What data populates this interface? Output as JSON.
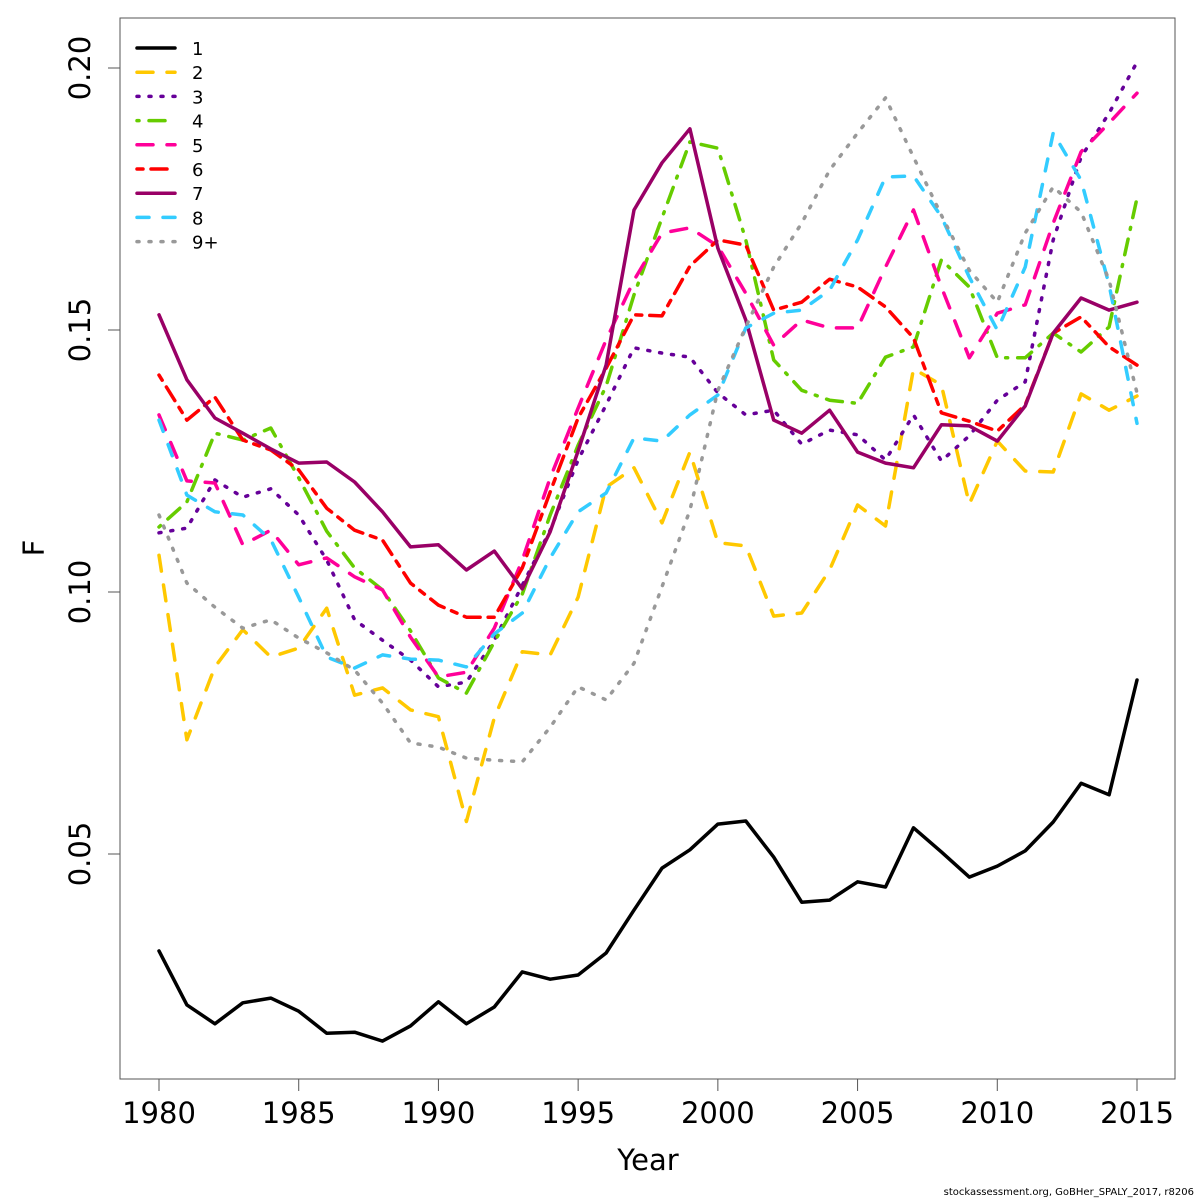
{
  "chart_data": {
    "type": "line",
    "title": "",
    "xlabel": "Year",
    "ylabel": "F",
    "xlim": [
      1978.6,
      2016.3
    ],
    "ylim": [
      0.012,
      0.2095
    ],
    "x_ticks": [
      1980,
      1985,
      1990,
      1995,
      2000,
      2005,
      2010,
      2015
    ],
    "x_tick_labels": [
      "1980",
      "1985",
      "1990",
      "1995",
      "2000",
      "2005",
      "2010",
      "2015"
    ],
    "y_ticks": [
      0.05,
      0.1,
      0.15,
      0.2
    ],
    "y_tick_labels": [
      "0.05",
      "0.10",
      "0.15",
      "0.20"
    ],
    "grid": false,
    "legend_position": "top-left",
    "x": [
      1980,
      1981,
      1982,
      1983,
      1984,
      1985,
      1986,
      1987,
      1988,
      1989,
      1990,
      1991,
      1992,
      1993,
      1994,
      1995,
      1996,
      1997,
      1998,
      1999,
      2000,
      2001,
      2002,
      2003,
      2004,
      2005,
      2006,
      2007,
      2008,
      2009,
      2010,
      2011,
      2012,
      2013,
      2014,
      2015
    ],
    "series": [
      {
        "name": "1",
        "color": "#000000",
        "dash": "solid",
        "values": [
          0.0315,
          0.0212,
          0.0176,
          0.0216,
          0.0225,
          0.02,
          0.0158,
          0.016,
          0.0143,
          0.0172,
          0.0218,
          0.0176,
          0.0208,
          0.0275,
          0.0261,
          0.0269,
          0.0311,
          0.0393,
          0.0473,
          0.0508,
          0.0557,
          0.0563,
          0.0494,
          0.0408,
          0.0412,
          0.0447,
          0.0437,
          0.055,
          0.0504,
          0.0456,
          0.0477,
          0.0506,
          0.0561,
          0.0635,
          0.0613,
          0.0832
        ]
      },
      {
        "name": "2",
        "color": "#FFC800",
        "dash": "longdash",
        "values": [
          0.107,
          0.0718,
          0.0857,
          0.0928,
          0.0876,
          0.0893,
          0.0969,
          0.0803,
          0.0817,
          0.0775,
          0.0762,
          0.0562,
          0.076,
          0.0886,
          0.088,
          0.099,
          0.12,
          0.1237,
          0.1132,
          0.1267,
          0.1094,
          0.1088,
          0.0954,
          0.096,
          0.1042,
          0.1166,
          0.1126,
          0.1426,
          0.1395,
          0.1168,
          0.1288,
          0.1231,
          0.1229,
          0.1378,
          0.1347,
          0.1374
        ]
      },
      {
        "name": "3",
        "color": "#660099",
        "dash": "dotted",
        "values": [
          0.1113,
          0.1122,
          0.1214,
          0.1181,
          0.1197,
          0.1147,
          0.1061,
          0.0947,
          0.0908,
          0.087,
          0.0819,
          0.0828,
          0.0908,
          0.1013,
          0.1118,
          0.1252,
          0.1357,
          0.1466,
          0.1456,
          0.1448,
          0.138,
          0.1338,
          0.1347,
          0.1282,
          0.1309,
          0.13,
          0.1252,
          0.1338,
          0.125,
          0.1298,
          0.1366,
          0.1401,
          0.1672,
          0.183,
          0.1914,
          0.2011
        ]
      },
      {
        "name": "4",
        "color": "#66CC00",
        "dash": "dotdash",
        "values": [
          0.1124,
          0.1172,
          0.1303,
          0.129,
          0.1313,
          0.1218,
          0.1116,
          0.1046,
          0.1004,
          0.0926,
          0.0836,
          0.0807,
          0.0905,
          0.0996,
          0.1147,
          0.128,
          0.1393,
          0.1567,
          0.1714,
          0.1859,
          0.1847,
          0.1672,
          0.1443,
          0.1385,
          0.1366,
          0.136,
          0.1448,
          0.1468,
          0.1634,
          0.1582,
          0.1447,
          0.1447,
          0.1494,
          0.1458,
          0.1506,
          0.1752
        ]
      },
      {
        "name": "5",
        "color": "#FF0099",
        "dash": "longdash",
        "values": [
          0.1338,
          0.1212,
          0.1208,
          0.109,
          0.1118,
          0.1052,
          0.1065,
          0.1029,
          0.1004,
          0.0914,
          0.0838,
          0.0847,
          0.0931,
          0.1061,
          0.1218,
          0.1351,
          0.1481,
          0.1595,
          0.1685,
          0.1695,
          0.166,
          0.157,
          0.1471,
          0.1519,
          0.1504,
          0.1504,
          0.162,
          0.1729,
          0.1582,
          0.1447,
          0.1532,
          0.1548,
          0.1704,
          0.184,
          0.1895,
          0.1952
        ]
      },
      {
        "name": "6",
        "color": "#FF0000",
        "dash": "twodash",
        "values": [
          0.1414,
          0.1328,
          0.1372,
          0.129,
          0.1271,
          0.1233,
          0.116,
          0.1118,
          0.1099,
          0.1017,
          0.0975,
          0.0952,
          0.0952,
          0.1046,
          0.1191,
          0.1332,
          0.1427,
          0.1529,
          0.1527,
          0.1622,
          0.1672,
          0.1662,
          0.1538,
          0.1553,
          0.1597,
          0.1582,
          0.1544,
          0.1485,
          0.1342,
          0.1326,
          0.1307,
          0.1357,
          0.1494,
          0.1525,
          0.1468,
          0.1433
        ]
      },
      {
        "name": "7",
        "color": "#990066",
        "dash": "solid",
        "values": [
          0.1529,
          0.1405,
          0.1332,
          0.1303,
          0.1273,
          0.1246,
          0.1248,
          0.121,
          0.1153,
          0.1086,
          0.109,
          0.1042,
          0.1078,
          0.1006,
          0.1115,
          0.1269,
          0.1433,
          0.1729,
          0.1819,
          0.1884,
          0.1656,
          0.1519,
          0.1328,
          0.1303,
          0.1347,
          0.1267,
          0.1246,
          0.1237,
          0.1319,
          0.1317,
          0.1288,
          0.1355,
          0.1494,
          0.1561,
          0.1538,
          0.1553
        ]
      },
      {
        "name": "8",
        "color": "#33CCFF",
        "dash": "dashed",
        "values": [
          0.1328,
          0.1185,
          0.1153,
          0.1147,
          0.11,
          0.099,
          0.0876,
          0.0855,
          0.088,
          0.0872,
          0.087,
          0.0857,
          0.092,
          0.096,
          0.1065,
          0.1153,
          0.1189,
          0.1294,
          0.1288,
          0.1338,
          0.1376,
          0.1504,
          0.1532,
          0.1538,
          0.1576,
          0.1672,
          0.1792,
          0.1794,
          0.1716,
          0.1601,
          0.15,
          0.162,
          0.1876,
          0.1786,
          0.1586,
          0.1322
        ]
      },
      {
        "name": "9+",
        "color": "#999999",
        "dash": "dotted",
        "values": [
          0.1147,
          0.1017,
          0.0971,
          0.0931,
          0.0947,
          0.0912,
          0.0884,
          0.0851,
          0.0788,
          0.0712,
          0.0704,
          0.0683,
          0.0679,
          0.0676,
          0.0742,
          0.0819,
          0.0794,
          0.0864,
          0.101,
          0.1156,
          0.1385,
          0.1506,
          0.162,
          0.1704,
          0.1805,
          0.1876,
          0.1943,
          0.183,
          0.1719,
          0.1614,
          0.1553,
          0.1685,
          0.1773,
          0.1725,
          0.1595,
          0.138
        ]
      }
    ]
  },
  "footer": {
    "credit": "stockassessment.org, GoBHer_SPALY_2017, r8206"
  }
}
